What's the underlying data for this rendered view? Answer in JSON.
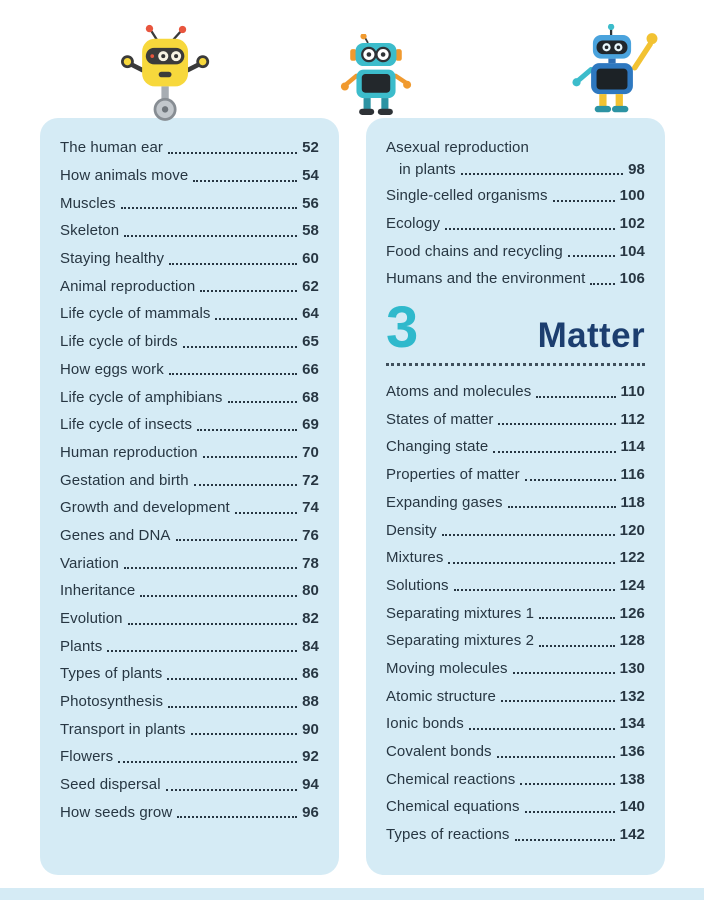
{
  "page": {
    "colors": {
      "panel": "#d5ebf5",
      "text": "#273642",
      "accent_teal": "#2fb9cc",
      "heading_navy": "#1c3e6f",
      "page_bg": "#ffffff"
    }
  },
  "icons": [
    {
      "name": "robot-yellow-icon"
    },
    {
      "name": "robot-teal-icon"
    },
    {
      "name": "robot-blue-icon"
    }
  ],
  "left_column": {
    "entries": [
      {
        "title": "The human ear",
        "page": "52"
      },
      {
        "title": "How animals move",
        "page": "54"
      },
      {
        "title": "Muscles",
        "page": "56"
      },
      {
        "title": "Skeleton",
        "page": "58"
      },
      {
        "title": "Staying healthy",
        "page": "60"
      },
      {
        "title": "Animal reproduction",
        "page": "62"
      },
      {
        "title": "Life cycle of mammals",
        "page": "64"
      },
      {
        "title": "Life cycle of birds",
        "page": "65"
      },
      {
        "title": "How eggs work",
        "page": "66"
      },
      {
        "title": "Life cycle of amphibians",
        "page": "68"
      },
      {
        "title": "Life cycle of insects",
        "page": "69"
      },
      {
        "title": "Human reproduction",
        "page": "70"
      },
      {
        "title": "Gestation and birth",
        "page": "72"
      },
      {
        "title": "Growth and development",
        "page": "74"
      },
      {
        "title": "Genes and DNA",
        "page": "76"
      },
      {
        "title": "Variation",
        "page": "78"
      },
      {
        "title": "Inheritance",
        "page": "80"
      },
      {
        "title": "Evolution",
        "page": "82"
      },
      {
        "title": "Plants",
        "page": "84"
      },
      {
        "title": "Types of plants",
        "page": "86"
      },
      {
        "title": "Photosynthesis",
        "page": "88"
      },
      {
        "title": "Transport in plants",
        "page": "90"
      },
      {
        "title": "Flowers",
        "page": "92"
      },
      {
        "title": "Seed dispersal",
        "page": "94"
      },
      {
        "title": "How seeds grow",
        "page": "96"
      }
    ]
  },
  "right_column": {
    "entries_top": [
      {
        "title": "Asexual reproduction",
        "title2": "in plants",
        "page": "98"
      },
      {
        "title": "Single-celled organisms",
        "page": "100"
      },
      {
        "title": "Ecology",
        "page": "102"
      },
      {
        "title": "Food chains and recycling",
        "page": "104"
      },
      {
        "title": "Humans and the environment",
        "page": "106"
      }
    ],
    "section": {
      "number": "3",
      "title": "Matter"
    },
    "entries_bottom": [
      {
        "title": "Atoms and molecules",
        "page": "110"
      },
      {
        "title": "States of matter",
        "page": "112"
      },
      {
        "title": "Changing state",
        "page": "114"
      },
      {
        "title": "Properties of matter",
        "page": "116"
      },
      {
        "title": "Expanding gases",
        "page": "118"
      },
      {
        "title": "Density",
        "page": "120"
      },
      {
        "title": "Mixtures",
        "page": "122"
      },
      {
        "title": "Solutions",
        "page": "124"
      },
      {
        "title": "Separating mixtures 1",
        "page": "126"
      },
      {
        "title": "Separating mixtures 2",
        "page": "128"
      },
      {
        "title": "Moving molecules",
        "page": "130"
      },
      {
        "title": "Atomic structure",
        "page": "132"
      },
      {
        "title": "Ionic bonds",
        "page": "134"
      },
      {
        "title": "Covalent bonds",
        "page": "136"
      },
      {
        "title": "Chemical reactions",
        "page": "138"
      },
      {
        "title": "Chemical equations",
        "page": "140"
      },
      {
        "title": "Types of reactions",
        "page": "142"
      }
    ]
  }
}
